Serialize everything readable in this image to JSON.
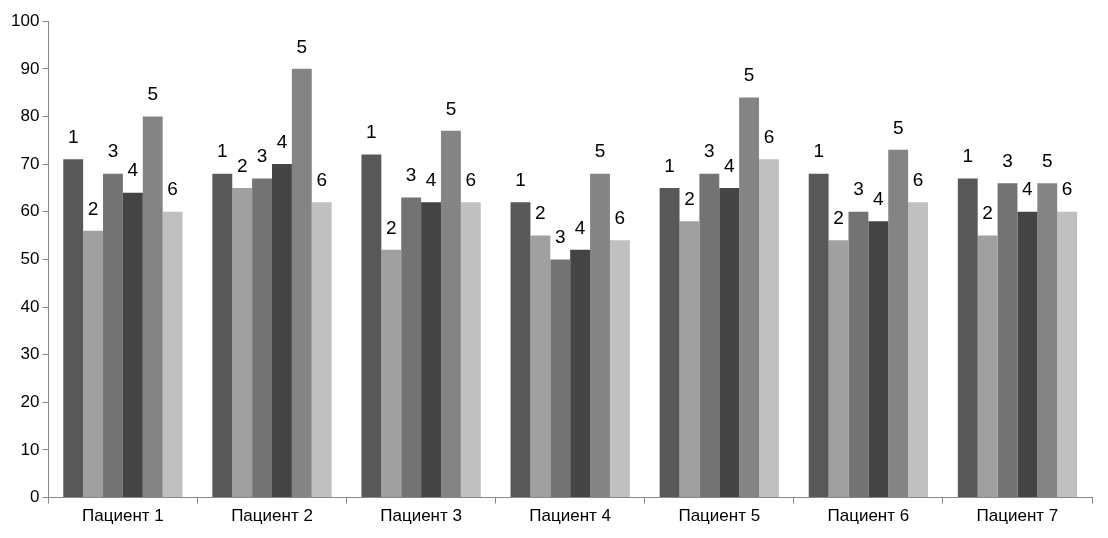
{
  "chart_data": {
    "type": "bar",
    "categories": [
      "Пациент 1",
      "Пациент 2",
      "Пациент 3",
      "Пациент 4",
      "Пациент 5",
      "Пациент 6",
      "Пациент 7"
    ],
    "series": [
      {
        "name": "1",
        "color": "#585858",
        "values": [
          71,
          68,
          72,
          62,
          65,
          68,
          67
        ]
      },
      {
        "name": "2",
        "color": "#a0a0a0",
        "values": [
          56,
          65,
          52,
          55,
          58,
          54,
          55
        ]
      },
      {
        "name": "3",
        "color": "#737373",
        "values": [
          68,
          67,
          63,
          50,
          68,
          60,
          66
        ]
      },
      {
        "name": "4",
        "color": "#444444",
        "values": [
          64,
          70,
          62,
          52,
          65,
          58,
          60
        ]
      },
      {
        "name": "5",
        "color": "#848484",
        "values": [
          80,
          90,
          77,
          68,
          84,
          73,
          66
        ]
      },
      {
        "name": "6",
        "color": "#c0c0c0",
        "values": [
          60,
          62,
          62,
          54,
          71,
          62,
          60
        ]
      }
    ],
    "ylim": [
      0,
      100
    ],
    "yticks": [
      0,
      10,
      20,
      30,
      40,
      50,
      60,
      70,
      80,
      90,
      100
    ],
    "grid": false,
    "legend": false
  }
}
